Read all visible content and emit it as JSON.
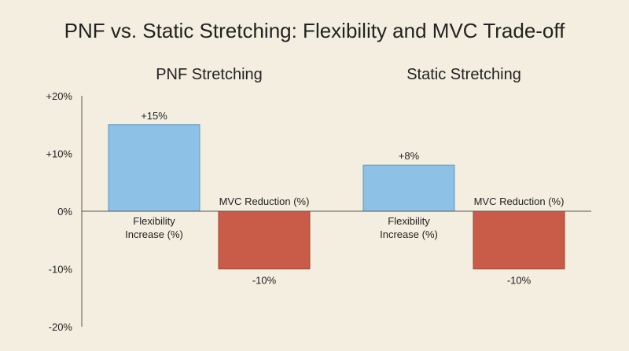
{
  "chart_data": {
    "type": "bar",
    "title": "PNF vs. Static Stretching: Flexibility and MVC Trade-off",
    "ylim": [
      -20,
      20
    ],
    "yticks": [
      {
        "value": 20,
        "label": "+20%"
      },
      {
        "value": 10,
        "label": "+10%"
      },
      {
        "value": 0,
        "label": "0%"
      },
      {
        "value": -10,
        "label": "-10%"
      },
      {
        "value": -20,
        "label": "-20%"
      }
    ],
    "groups": [
      {
        "name": "PNF Stretching",
        "bars": [
          {
            "category": "Flexibility Increase (%)",
            "label_lines": [
              "Flexibility",
              "Increase (%)"
            ],
            "value": 15,
            "value_label": "+15%"
          },
          {
            "category": "MVC Reduction (%)",
            "label_lines": [
              "MVC Reduction (%)"
            ],
            "value": -10,
            "value_label": "-10%"
          }
        ]
      },
      {
        "name": "Static Stretching",
        "bars": [
          {
            "category": "Flexibility Increase (%)",
            "label_lines": [
              "Flexibility",
              "Increase (%)"
            ],
            "value": 8,
            "value_label": "+8%"
          },
          {
            "category": "MVC Reduction (%)",
            "label_lines": [
              "MVC Reduction (%)"
            ],
            "value": -10,
            "value_label": "-10%"
          }
        ]
      }
    ],
    "colors": {
      "positive": "#8dc1e6",
      "negative": "#c85c48",
      "axis": "#555555",
      "background": "#f3eedf"
    },
    "grid": false,
    "legend": "none"
  }
}
